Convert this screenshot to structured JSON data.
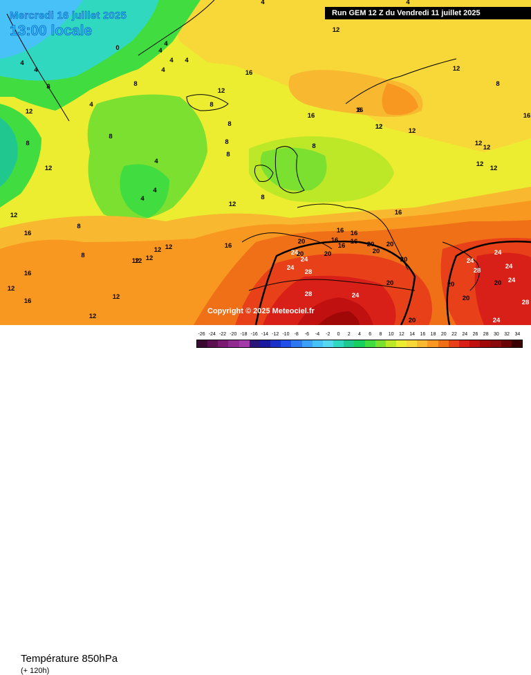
{
  "header": {
    "date": "Mercredi 16 juillet 2025",
    "time": "13:00 locale",
    "run": "Run GEM 12 Z du Vendredi 11 juillet 2025"
  },
  "copyright": "Copyright © 2025 Meteociel.fr",
  "legend": {
    "title": "Température 850hPa",
    "subtitle": "(+ 120h)",
    "scale": [
      {
        "v": "-26",
        "c": "#3b0a33"
      },
      {
        "v": "-24",
        "c": "#5c1050"
      },
      {
        "v": "-22",
        "c": "#7a1a70"
      },
      {
        "v": "-20",
        "c": "#8f2a90"
      },
      {
        "v": "-18",
        "c": "#a23aa8"
      },
      {
        "v": "-16",
        "c": "#2a1578"
      },
      {
        "v": "-14",
        "c": "#1a1aa0"
      },
      {
        "v": "-12",
        "c": "#1a30c8"
      },
      {
        "v": "-10",
        "c": "#2050e8"
      },
      {
        "v": "-8",
        "c": "#2c78f0"
      },
      {
        "v": "-6",
        "c": "#3aa0f8"
      },
      {
        "v": "-4",
        "c": "#48c0f8"
      },
      {
        "v": "-2",
        "c": "#58d8f0"
      },
      {
        "v": "0",
        "c": "#30d8c0"
      },
      {
        "v": "2",
        "c": "#20c890"
      },
      {
        "v": "4",
        "c": "#18d060"
      },
      {
        "v": "6",
        "c": "#40dc40"
      },
      {
        "v": "8",
        "c": "#7ce030"
      },
      {
        "v": "10",
        "c": "#bce828"
      },
      {
        "v": "12",
        "c": "#ecec30"
      },
      {
        "v": "14",
        "c": "#f8d838"
      },
      {
        "v": "16",
        "c": "#f8b830"
      },
      {
        "v": "18",
        "c": "#f89820"
      },
      {
        "v": "20",
        "c": "#f07018"
      },
      {
        "v": "22",
        "c": "#e84018"
      },
      {
        "v": "24",
        "c": "#d82018"
      },
      {
        "v": "26",
        "c": "#c01010"
      },
      {
        "v": "28",
        "c": "#a00808"
      },
      {
        "v": "30",
        "c": "#880a0a"
      },
      {
        "v": "32",
        "c": "#6a0404"
      },
      {
        "v": "34",
        "c": "#3a0000"
      }
    ]
  },
  "map_labels": [
    "4",
    "4",
    "4",
    "0",
    "4",
    "4",
    "4",
    "4",
    "4",
    "4",
    "8",
    "8",
    "12",
    "12",
    "4",
    "8",
    "8",
    "4",
    "16",
    "12",
    "8",
    "8",
    "16",
    "16",
    "12",
    "12",
    "8",
    "8",
    "8",
    "4",
    "4",
    "8",
    "12",
    "8",
    "12",
    "12",
    "12",
    "8",
    "12",
    "16",
    "12",
    "12",
    "12",
    "12",
    "8",
    "16",
    "8",
    "12",
    "12",
    "12",
    "12",
    "12",
    "16",
    "16",
    "16",
    "16",
    "16",
    "20",
    "16",
    "20",
    "20",
    "24",
    "24",
    "20",
    "20",
    "20",
    "24",
    "28",
    "20",
    "20",
    "20",
    "24",
    "28",
    "24",
    "28",
    "24",
    "24",
    "24",
    "20",
    "20",
    "28",
    "20",
    "24",
    "12",
    "12",
    "16",
    "16",
    "16",
    "12"
  ]
}
